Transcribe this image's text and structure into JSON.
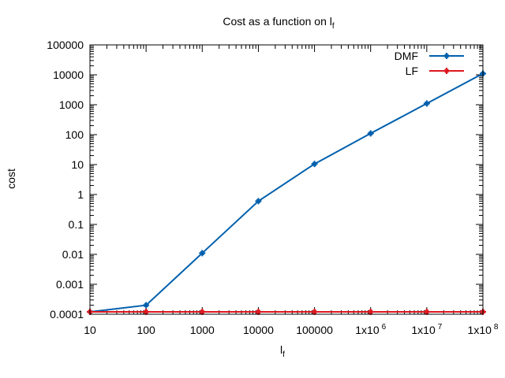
{
  "chart_data": {
    "type": "line",
    "title": "Cost as a function on l",
    "title_subscript": "f",
    "xlabel": "l",
    "xlabel_subscript": "f",
    "ylabel": "cost",
    "x_scale": "log",
    "y_scale": "log",
    "xlim": [
      10,
      100000000
    ],
    "ylim": [
      0.0001,
      100000
    ],
    "x_ticks": [
      {
        "value": 10,
        "label": "10",
        "sup": ""
      },
      {
        "value": 100,
        "label": "100",
        "sup": ""
      },
      {
        "value": 1000,
        "label": "1000",
        "sup": ""
      },
      {
        "value": 10000,
        "label": "10000",
        "sup": ""
      },
      {
        "value": 100000,
        "label": "100000",
        "sup": ""
      },
      {
        "value": 1000000,
        "label": "1x10",
        "sup": "6"
      },
      {
        "value": 10000000,
        "label": "1x10",
        "sup": "7"
      },
      {
        "value": 100000000,
        "label": "1x10",
        "sup": "8"
      }
    ],
    "y_ticks": [
      {
        "value": 0.0001,
        "label": "0.0001"
      },
      {
        "value": 0.001,
        "label": "0.001"
      },
      {
        "value": 0.01,
        "label": "0.01"
      },
      {
        "value": 0.1,
        "label": "0.1"
      },
      {
        "value": 1,
        "label": "1"
      },
      {
        "value": 10,
        "label": "10"
      },
      {
        "value": 100,
        "label": "100"
      },
      {
        "value": 1000,
        "label": "1000"
      },
      {
        "value": 10000,
        "label": "10000"
      },
      {
        "value": 100000,
        "label": "100000"
      }
    ],
    "grid": false,
    "legend_position": "top-right",
    "series": [
      {
        "name": "DMF",
        "color": "#0060ad",
        "x": [
          10,
          100,
          1000,
          10000,
          100000,
          1000000,
          10000000,
          100000000
        ],
        "y": [
          0.00012,
          0.0002,
          0.011,
          0.6,
          10.5,
          110,
          1100,
          11000
        ]
      },
      {
        "name": "LF",
        "color": "#dd181f",
        "x": [
          10,
          100,
          1000,
          10000,
          100000,
          1000000,
          10000000,
          100000000
        ],
        "y": [
          0.00012,
          0.00012,
          0.00012,
          0.00012,
          0.00012,
          0.00012,
          0.00012,
          0.00012
        ]
      }
    ]
  }
}
